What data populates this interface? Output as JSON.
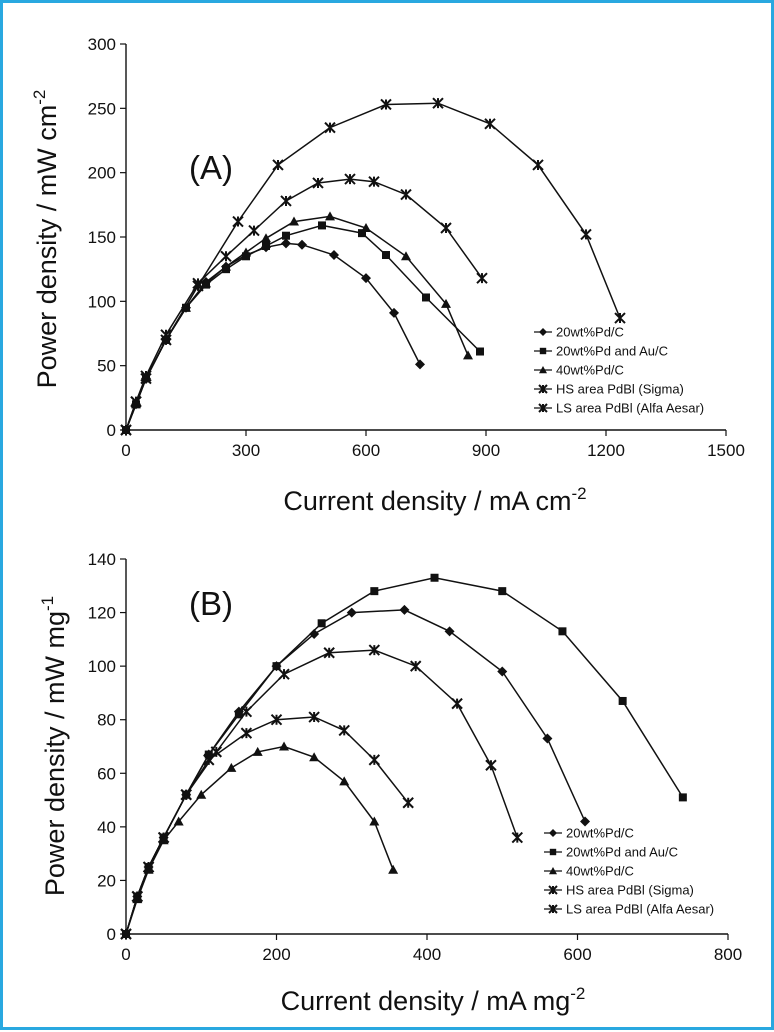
{
  "chart_data": [
    {
      "type": "line",
      "title": "",
      "panel_label": "(A)",
      "xlabel": "Current density / mA cm",
      "xlabel_sup": "-2",
      "ylabel": "Power density / mW cm",
      "ylabel_sup": "-2",
      "xlim": [
        0,
        1500
      ],
      "ylim": [
        0,
        300
      ],
      "xticks": [
        "0",
        "300",
        "600",
        "900",
        "1200",
        "1500"
      ],
      "yticks": [
        "0",
        "50",
        "100",
        "150",
        "200",
        "250",
        "300"
      ],
      "legend_position": "bottom-right",
      "series": [
        {
          "name": "20wt%Pd/C",
          "marker": "diamond",
          "x": [
            0,
            25,
            50,
            100,
            150,
            200,
            250,
            300,
            350,
            400,
            440,
            520,
            600,
            670,
            735
          ],
          "y": [
            0,
            20,
            40,
            70,
            95,
            115,
            127,
            136,
            142,
            145,
            144,
            136,
            118,
            91,
            51
          ]
        },
        {
          "name": "20wt%Pd and Au/C",
          "marker": "square",
          "x": [
            0,
            25,
            50,
            100,
            150,
            200,
            250,
            300,
            350,
            400,
            490,
            590,
            650,
            750,
            885
          ],
          "y": [
            0,
            20,
            40,
            70,
            95,
            113,
            125,
            135,
            143,
            151,
            159,
            153,
            136,
            103,
            61
          ]
        },
        {
          "name": "40wt%Pd/C",
          "marker": "triangle",
          "x": [
            0,
            25,
            50,
            100,
            150,
            200,
            250,
            300,
            350,
            420,
            510,
            600,
            700,
            800,
            855
          ],
          "y": [
            0,
            20,
            40,
            70,
            95,
            114,
            127,
            138,
            149,
            162,
            166,
            157,
            135,
            98,
            58
          ]
        },
        {
          "name": "HS area PdBl (Sigma)",
          "marker": "x",
          "x": [
            0,
            25,
            50,
            100,
            180,
            250,
            320,
            400,
            480,
            560,
            620,
            700,
            800,
            890
          ],
          "y": [
            0,
            22,
            42,
            74,
            114,
            135,
            155,
            178,
            192,
            195,
            193,
            183,
            157,
            118
          ]
        },
        {
          "name": "LS area PdBl (Alfa Aesar)",
          "marker": "x",
          "x": [
            0,
            25,
            50,
            100,
            180,
            280,
            380,
            510,
            650,
            780,
            910,
            1030,
            1150,
            1235
          ],
          "y": [
            0,
            22,
            40,
            70,
            112,
            162,
            206,
            235,
            253,
            254,
            238,
            206,
            152,
            87
          ]
        }
      ]
    },
    {
      "type": "line",
      "title": "",
      "panel_label": "(B)",
      "xlabel": "Current density / mA mg",
      "xlabel_sup": "-2",
      "ylabel": "Power density / mW mg",
      "ylabel_sup": "-1",
      "xlim": [
        0,
        800
      ],
      "ylim": [
        0,
        140
      ],
      "xticks": [
        "0",
        "200",
        "400",
        "600",
        "800"
      ],
      "yticks": [
        "0",
        "20",
        "40",
        "60",
        "80",
        "100",
        "120",
        "140"
      ],
      "legend_position": "bottom-right",
      "series": [
        {
          "name": "20wt%Pd/C",
          "marker": "diamond",
          "x": [
            0,
            15,
            30,
            50,
            80,
            110,
            150,
            200,
            250,
            300,
            370,
            430,
            500,
            560,
            610
          ],
          "y": [
            0,
            14,
            25,
            36,
            52,
            67,
            83,
            100,
            112,
            120,
            121,
            113,
            98,
            73,
            42
          ]
        },
        {
          "name": "20wt%Pd and Au/C",
          "marker": "square",
          "x": [
            0,
            15,
            30,
            50,
            80,
            110,
            150,
            200,
            260,
            330,
            410,
            500,
            580,
            660,
            740
          ],
          "y": [
            0,
            14,
            25,
            36,
            52,
            67,
            82,
            100,
            116,
            128,
            133,
            128,
            113,
            87,
            51
          ]
        },
        {
          "name": "40wt%Pd/C",
          "marker": "triangle",
          "x": [
            0,
            15,
            30,
            50,
            70,
            100,
            140,
            175,
            210,
            250,
            290,
            330,
            355
          ],
          "y": [
            0,
            13,
            24,
            35,
            42,
            52,
            62,
            68,
            70,
            66,
            57,
            42,
            24
          ]
        },
        {
          "name": "HS area PdBl (Sigma)",
          "marker": "x",
          "x": [
            0,
            15,
            30,
            50,
            80,
            110,
            160,
            200,
            250,
            290,
            330,
            375
          ],
          "y": [
            0,
            14,
            25,
            36,
            52,
            65,
            75,
            80,
            81,
            76,
            65,
            49
          ]
        },
        {
          "name": "LS area PdBl (Alfa Aesar)",
          "marker": "x",
          "x": [
            0,
            15,
            30,
            50,
            80,
            120,
            160,
            210,
            270,
            330,
            385,
            440,
            485,
            520
          ],
          "y": [
            0,
            14,
            25,
            36,
            52,
            68,
            83,
            97,
            105,
            106,
            100,
            86,
            63,
            36
          ]
        }
      ]
    }
  ]
}
